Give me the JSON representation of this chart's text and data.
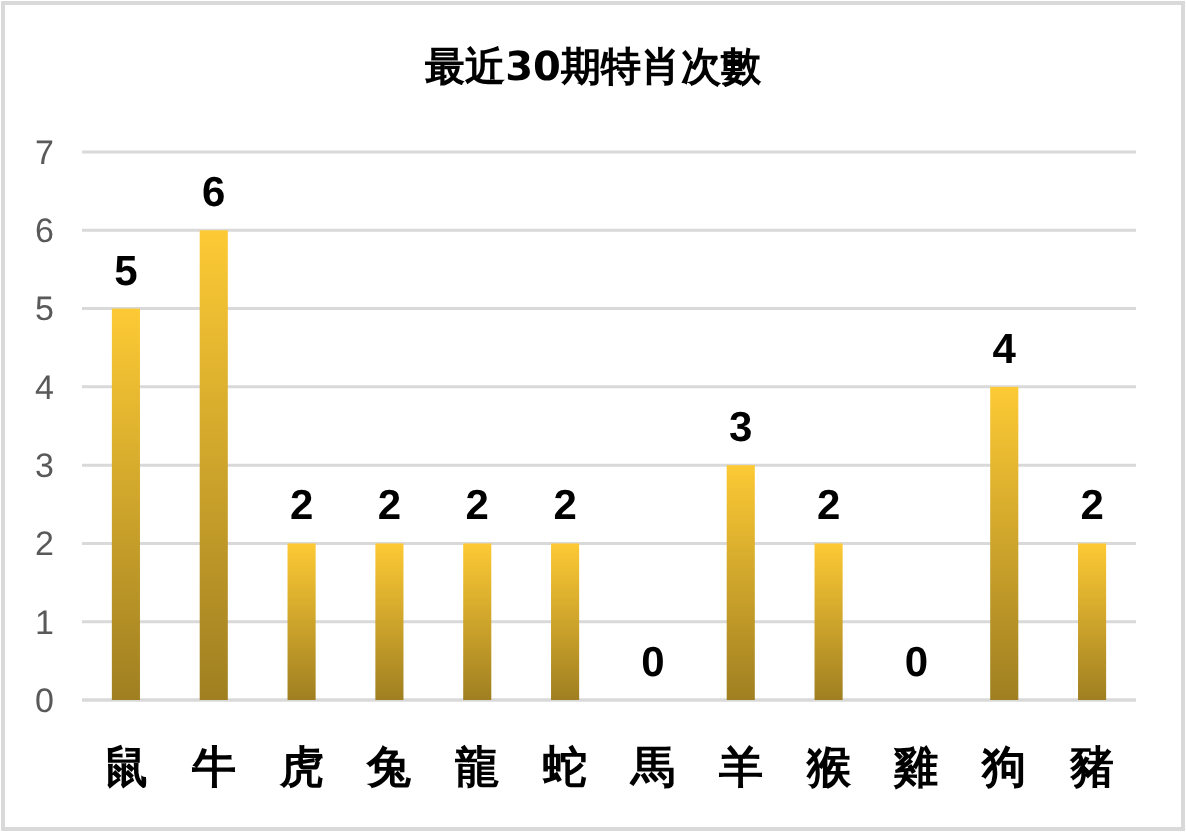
{
  "chart_data": {
    "type": "bar",
    "title": "最近30期特肖次數",
    "categories": [
      "鼠",
      "牛",
      "虎",
      "兔",
      "龍",
      "蛇",
      "馬",
      "羊",
      "猴",
      "雞",
      "狗",
      "豬"
    ],
    "values": [
      5,
      6,
      2,
      2,
      2,
      2,
      0,
      3,
      2,
      0,
      4,
      2
    ],
    "color": "#fdca35",
    "ylim": [
      0,
      7
    ],
    "yticks": [
      0,
      1,
      2,
      3,
      4,
      5,
      6,
      7
    ],
    "grid": "y",
    "data_labels": true
  }
}
